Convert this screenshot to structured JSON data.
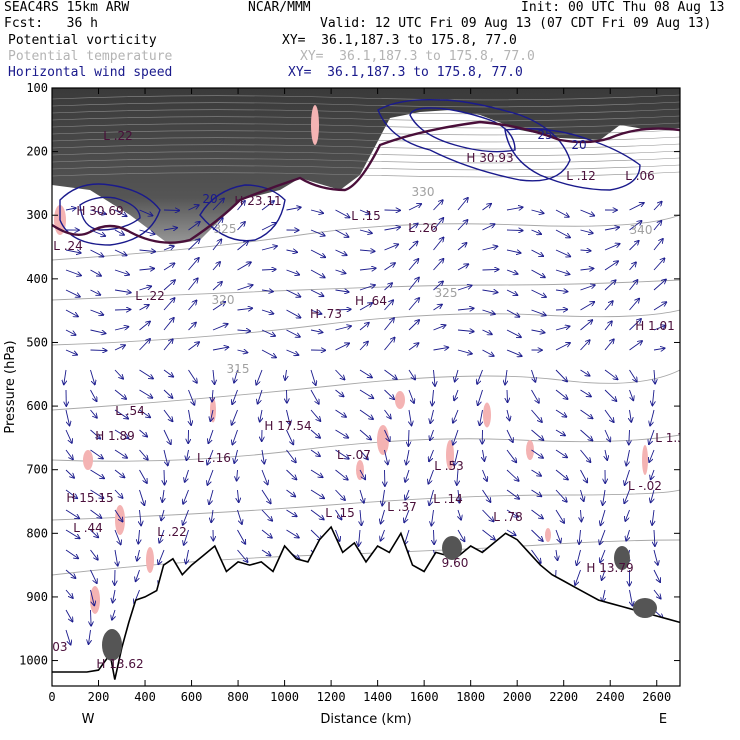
{
  "header": {
    "model": "SEAC4RS 15km ARW",
    "org": "NCAR/MMM",
    "init": "Init: 00 UTC Thu 08 Aug 13",
    "fcst": "Fcst:   36 h",
    "valid": "Valid: 12 UTC Fri 09 Aug 13 (07 CDT Fri 09 Aug 13)"
  },
  "fields": [
    {
      "name": "Potential vorticity",
      "xy": "XY=  36.1,187.3 to 175.8, 77.0",
      "color": "#000000"
    },
    {
      "name": "Potential temperature",
      "xy": "XY=  36.1,187.3 to 175.8, 77.0",
      "color": "#b4b4b4"
    },
    {
      "name": "Horizontal wind speed",
      "xy": "XY=  36.1,187.3 to 175.8, 77.0",
      "color": "#1a1a8c"
    }
  ],
  "chart_data": {
    "type": "cross-section",
    "xlabel": "Distance (km)",
    "ylabel": "Pressure (hPa)",
    "xlim": [
      0,
      2700
    ],
    "ylim": [
      1040,
      100
    ],
    "xticks": [
      0,
      200,
      400,
      600,
      800,
      1000,
      1200,
      1400,
      1600,
      1800,
      2000,
      2200,
      2400,
      2600
    ],
    "yticks": [
      100,
      200,
      300,
      400,
      500,
      600,
      700,
      800,
      900,
      1000
    ],
    "end_labels": {
      "left": "W",
      "right": "E"
    },
    "terrain": {
      "x": [
        0,
        150,
        200,
        250,
        270,
        300,
        330,
        360,
        400,
        450,
        480,
        520,
        560,
        600,
        650,
        700,
        750,
        800,
        850,
        900,
        950,
        1000,
        1050,
        1100,
        1150,
        1200,
        1250,
        1300,
        1350,
        1400,
        1450,
        1500,
        1550,
        1600,
        1650,
        1700,
        1750,
        1800,
        1850,
        1900,
        1950,
        2000,
        2050,
        2100,
        2150,
        2200,
        2250,
        2300,
        2350,
        2400,
        2450,
        2500,
        2550,
        2600,
        2650,
        2700
      ],
      "p": [
        1018,
        1018,
        1015,
        990,
        1030,
        980,
        940,
        905,
        900,
        890,
        850,
        840,
        865,
        850,
        835,
        820,
        860,
        845,
        850,
        845,
        860,
        820,
        840,
        845,
        810,
        790,
        830,
        815,
        845,
        820,
        830,
        800,
        850,
        860,
        830,
        835,
        835,
        820,
        830,
        815,
        800,
        810,
        830,
        850,
        865,
        875,
        885,
        895,
        905,
        910,
        915,
        920,
        925,
        930,
        935,
        940
      ]
    },
    "pv_contour_labels": [
      "L .22",
      "H 30.69",
      "L .24",
      "H 23.11",
      "L .15",
      "L .26",
      "H 30.93",
      "L .12",
      "L .06",
      "L .22",
      "H .73",
      "H .64",
      "H 1.01",
      "L .54",
      "H 1.89",
      "H 17.54",
      "L -.16",
      "L -.07",
      "L .53",
      "H 15.15",
      "L .44",
      "L .22",
      "L .15",
      "L .37",
      "L .14",
      "L .78",
      "L -.02",
      "H 13.79",
      "L 1.3",
      "H 13.62",
      "9.60",
      ".03"
    ],
    "theta_labels": [
      "320",
      "325",
      "315",
      "340",
      "330",
      "325"
    ],
    "wind_labels": [
      "25",
      "20",
      "20"
    ]
  }
}
